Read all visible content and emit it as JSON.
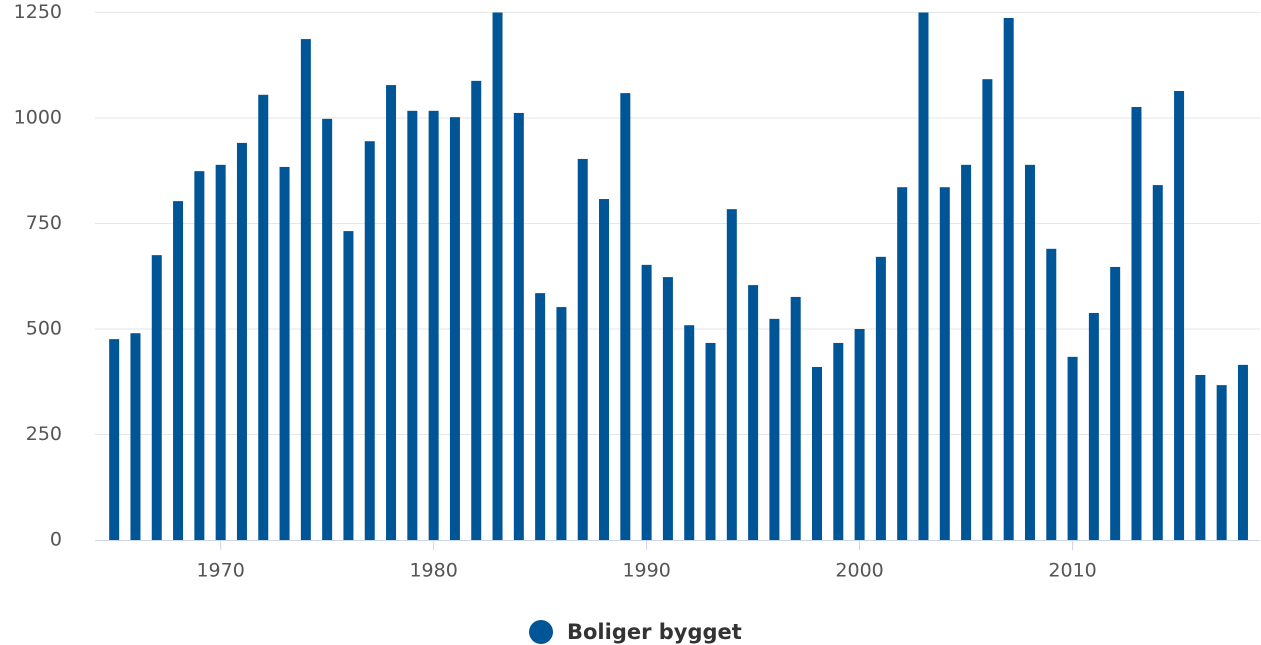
{
  "chart_data": {
    "type": "bar",
    "x": [
      1965,
      1966,
      1967,
      1968,
      1969,
      1970,
      1971,
      1972,
      1973,
      1974,
      1975,
      1976,
      1977,
      1978,
      1979,
      1980,
      1981,
      1982,
      1983,
      1984,
      1985,
      1986,
      1987,
      1988,
      1989,
      1990,
      1991,
      1992,
      1993,
      1994,
      1995,
      1996,
      1997,
      1998,
      1999,
      2000,
      2001,
      2002,
      2003,
      2004,
      2005,
      2006,
      2007,
      2008,
      2009,
      2010,
      2011,
      2012,
      2013,
      2014,
      2015,
      2016,
      2017,
      2018
    ],
    "series": [
      {
        "name": "Boliger bygget",
        "color": "#005596",
        "values": [
          476,
          490,
          675,
          803,
          874,
          889,
          941,
          1055,
          884,
          1187,
          998,
          732,
          945,
          1078,
          1017,
          1017,
          1002,
          1088,
          1260,
          1012,
          585,
          552,
          903,
          808,
          1059,
          652,
          623,
          509,
          467,
          784,
          604,
          524,
          576,
          410,
          467,
          500,
          671,
          836,
          1260,
          836,
          889,
          1092,
          1237,
          889,
          690,
          434,
          538,
          647,
          1026,
          841,
          1064,
          391,
          367,
          415
        ]
      }
    ],
    "xlim": [
      1964.1,
      2018.8
    ],
    "xticks": [
      1970,
      1980,
      1990,
      2000,
      2010
    ],
    "ylim": [
      0,
      1250
    ],
    "yticks": [
      0,
      250,
      500,
      750,
      1000,
      1250
    ],
    "grid": true,
    "legend": "bottom"
  }
}
